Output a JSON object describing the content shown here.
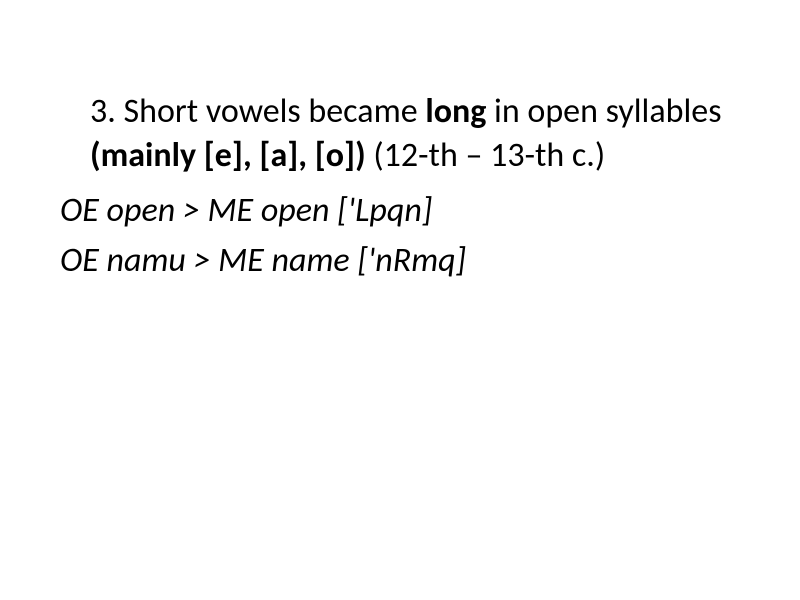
{
  "slide": {
    "item_number": "3.",
    "text_part1": " Short vowels became ",
    "text_bold1": "long",
    "text_part2": " in open syllables ",
    "text_bold2": "(mainly [e], [a], [o])",
    "text_part3": " (12-th – 13-th c.)",
    "example1_prefix": "OE open > ME open [",
    "example1_ipa": "'Lpqn",
    "example1_suffix": "]",
    "example2_prefix": "OE namu > ME name [",
    "example2_ipa": "'nRmq",
    "example2_suffix": "]"
  },
  "styling": {
    "background_color": "#ffffff",
    "text_color": "#000000",
    "font_family": "Calibri, Arial, sans-serif",
    "main_fontsize": 34,
    "line_height": 1.3
  }
}
